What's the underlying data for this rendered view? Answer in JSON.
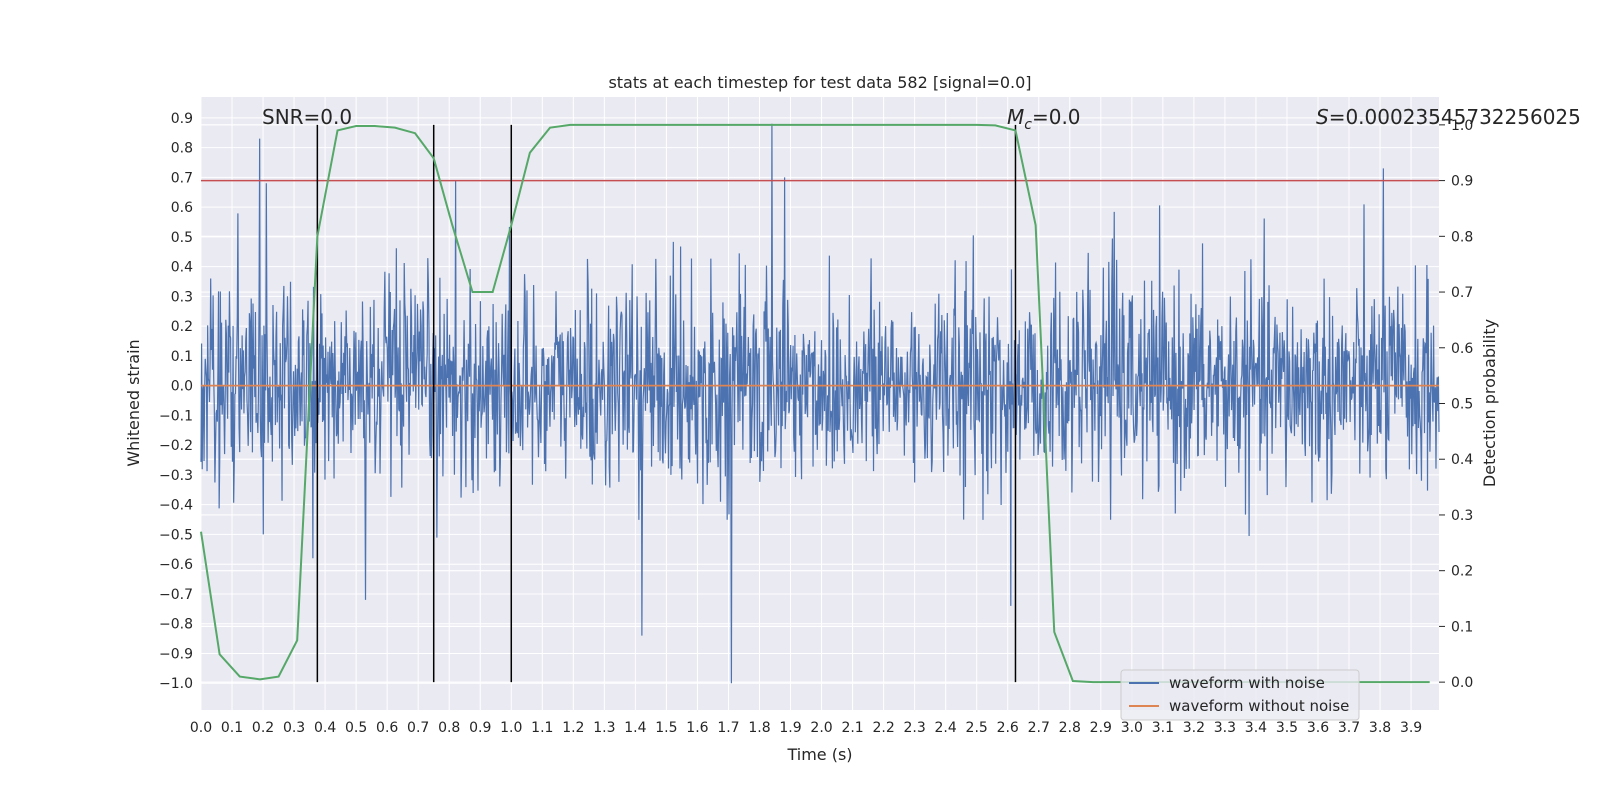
{
  "chart_data": {
    "type": "line",
    "title": "stats at each timestep for test data 582 [signal=0.0]",
    "xlabel": "Time (s)",
    "ylabel": "Whitened strain",
    "y2label": "Detection probability",
    "xlim": [
      0.0,
      3.99
    ],
    "ylim": [
      -1.09,
      0.97
    ],
    "y2lim": [
      -0.05,
      1.05
    ],
    "x_ticks": [
      "0.0",
      "0.1",
      "0.2",
      "0.3",
      "0.4",
      "0.5",
      "0.6",
      "0.7",
      "0.8",
      "0.9",
      "1.0",
      "1.1",
      "1.2",
      "1.3",
      "1.4",
      "1.5",
      "1.6",
      "1.7",
      "1.8",
      "1.9",
      "2.0",
      "2.1",
      "2.2",
      "2.3",
      "2.4",
      "2.5",
      "2.6",
      "2.7",
      "2.8",
      "2.9",
      "3.0",
      "3.1",
      "3.2",
      "3.3",
      "3.4",
      "3.5",
      "3.6",
      "3.7",
      "3.8",
      "3.9"
    ],
    "y_ticks": [
      "0.9",
      "0.8",
      "0.7",
      "0.6",
      "0.5",
      "0.4",
      "0.3",
      "0.2",
      "0.1",
      "0.0",
      "−0.1",
      "−0.2",
      "−0.3",
      "−0.4",
      "−0.5",
      "−0.6",
      "−0.7",
      "−0.8",
      "−0.9",
      "−1.0"
    ],
    "y2_ticks": [
      "1.0",
      "0.9",
      "0.8",
      "0.7",
      "0.6",
      "0.5",
      "0.4",
      "0.3",
      "0.2",
      "0.1",
      "0.0"
    ],
    "grid": true,
    "legend_position": "lower-right",
    "annotations": {
      "snr": "SNR=0.0",
      "mc_symbol": "M",
      "mc_sub": "c",
      "mc_value": "=0.0",
      "s_symbol": "S",
      "s_value": "=0.00023545732256025"
    },
    "vertical_lines_x": [
      0.375,
      0.75,
      1.0,
      2.625
    ],
    "threshold_probability": 0.9,
    "series": [
      {
        "name": "waveform with noise",
        "color": "#4c72b0",
        "generated": true,
        "samples": 2048,
        "spikes": [
          [
            0.19,
            0.83
          ],
          [
            0.2,
            -0.5
          ],
          [
            1.84,
            0.88
          ],
          [
            1.88,
            0.7
          ],
          [
            1.71,
            -1.0
          ],
          [
            1.42,
            -0.84
          ],
          [
            0.53,
            -0.72
          ],
          [
            0.21,
            0.68
          ],
          [
            0.82,
            0.69
          ],
          [
            3.81,
            0.73
          ],
          [
            2.61,
            -0.74
          ],
          [
            0.36,
            -0.58
          ]
        ]
      },
      {
        "name": "waveform without noise",
        "color": "#dd8452",
        "values_constant": 0.0
      },
      {
        "name": "detection probability",
        "color": "#55a868",
        "x": [
          0.0,
          0.06,
          0.125,
          0.19,
          0.25,
          0.31,
          0.375,
          0.44,
          0.5,
          0.56,
          0.625,
          0.69,
          0.75,
          0.81,
          0.875,
          0.94,
          1.0,
          1.06,
          1.125,
          1.19,
          1.25,
          1.5,
          2.0,
          2.5,
          2.56,
          2.625,
          2.69,
          2.75,
          2.81,
          2.875,
          3.0,
          3.5,
          3.96
        ],
        "y": [
          0.27,
          0.05,
          0.01,
          0.005,
          0.01,
          0.075,
          0.8,
          0.99,
          0.998,
          0.998,
          0.995,
          0.985,
          0.94,
          0.82,
          0.7,
          0.7,
          0.82,
          0.95,
          0.995,
          1.0,
          1.0,
          1.0,
          1.0,
          1.0,
          0.999,
          0.99,
          0.82,
          0.09,
          0.002,
          0.0,
          0.0,
          0.0,
          0.0
        ]
      }
    ]
  }
}
